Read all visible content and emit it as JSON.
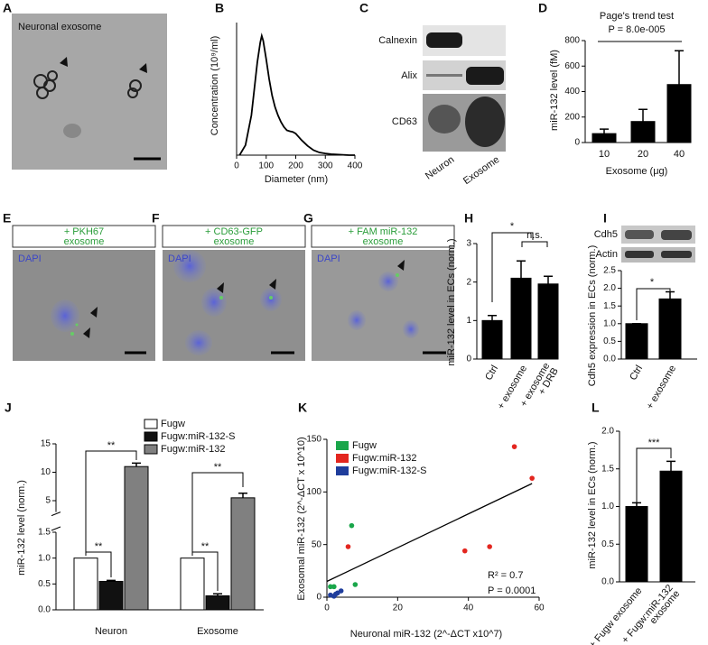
{
  "panels": [
    {
      "letter": "A",
      "label": "Neuronal exosome"
    },
    {
      "letter": "C",
      "bands": [
        "Calnexin",
        "Alix",
        "CD63"
      ],
      "lanes": [
        "Neuron",
        "Exosome"
      ]
    },
    {
      "letter": "E",
      "label": [
        "+ PKH67",
        "exosome"
      ],
      "stain": "DAPI"
    },
    {
      "letter": "F",
      "label": [
        "+ CD63-GFP",
        "exosome"
      ],
      "stain": "DAPI"
    },
    {
      "letter": "G",
      "label": [
        "+ FAM miR-132",
        "exosome"
      ],
      "stain": "DAPI"
    },
    {
      "letter": "I",
      "bands": [
        "Cdh5",
        "Actin"
      ]
    }
  ],
  "chart_data": [
    {
      "panel": "B",
      "type": "line",
      "xlabel": "Diameter (nm)",
      "ylabel": "Concentration (10⁹/ml)",
      "x": [
        10,
        30,
        50,
        60,
        70,
        80,
        85,
        90,
        100,
        110,
        120,
        130,
        140,
        150,
        160,
        170,
        180,
        190,
        200,
        210,
        220,
        240,
        260,
        280,
        300,
        320,
        340,
        360,
        380,
        400
      ],
      "values": [
        0,
        0.3,
        1.2,
        2.0,
        2.8,
        3.4,
        3.6,
        3.45,
        2.9,
        2.3,
        1.8,
        1.45,
        1.2,
        1.0,
        0.85,
        0.75,
        0.72,
        0.7,
        0.65,
        0.55,
        0.45,
        0.28,
        0.15,
        0.08,
        0.05,
        0.03,
        0.02,
        0.01,
        0,
        0
      ],
      "color": "#000000",
      "xlim": [
        0,
        400
      ],
      "xticks": [
        0,
        100,
        200,
        300,
        400
      ],
      "ylim": [
        0,
        4
      ]
    },
    {
      "panel": "D",
      "type": "bar",
      "title": "Page's trend test",
      "subtitle": "P = 8.0e-005",
      "xlabel": "Exosome (μg)",
      "ylabel": "miR-132 level (fM)",
      "categories": [
        "10",
        "20",
        "40"
      ],
      "values": [
        70,
        165,
        455
      ],
      "errors": [
        35,
        95,
        265
      ],
      "color": "#000000",
      "ylim": [
        0,
        800
      ],
      "yticks": [
        0,
        200,
        400,
        600,
        800
      ]
    },
    {
      "panel": "H",
      "type": "bar",
      "ylabel": "miR-132 level in ECs (norm.)",
      "categories": [
        [
          "Ctrl"
        ],
        [
          "+ exosome"
        ],
        [
          "+ exosome",
          "+ DRB"
        ]
      ],
      "values": [
        1.0,
        2.1,
        1.95
      ],
      "errors": [
        0.13,
        0.45,
        0.2
      ],
      "color": "#000000",
      "ylim": [
        0,
        3
      ],
      "yticks": [
        0,
        1,
        2,
        3
      ],
      "annotations": [
        "*",
        "n.s."
      ]
    },
    {
      "type": "bar",
      "ylabel": "Cdh5 expression in ECs (norm.)",
      "categories": [
        [
          "Ctrl"
        ],
        [
          "+ exosome"
        ]
      ],
      "values": [
        1.0,
        1.7
      ],
      "errors": [
        0,
        0.2
      ],
      "color": "#000000",
      "ylim": [
        0,
        2.5
      ],
      "yticks": [
        {
          "value": 0,
          "label": "0.0"
        },
        0.5,
        {
          "value": 1,
          "label": "1.0"
        },
        1.5,
        {
          "value": 2,
          "label": "2.0"
        },
        2.5
      ],
      "annotations": [
        "*"
      ]
    },
    {
      "panel": "J",
      "type": "broken-bar",
      "ylabel": "miR-132 level (norm.)",
      "categories": [
        "Neuron",
        "Exosome"
      ],
      "series": [
        {
          "name": "Fugw",
          "color": "#ffffff",
          "values": [
            1.0,
            1.0
          ]
        },
        {
          "name": "Fugw:miR-132-S",
          "color": "#111111",
          "values": [
            0.55,
            0.27
          ],
          "errors": [
            0.02,
            0.04
          ]
        },
        {
          "name": "Fugw:miR-132",
          "color": "#808080",
          "values": [
            11.0,
            5.5
          ],
          "errors": [
            0.6,
            0.8
          ]
        }
      ],
      "ylim": [
        0,
        15
      ],
      "ybreak": [
        1.5,
        3
      ],
      "yticks": [
        {
          "value": 0,
          "label": "0.0"
        },
        0.5,
        {
          "value": 1,
          "label": "1.0"
        },
        1.5,
        5,
        10,
        15
      ],
      "annotations": [
        "**",
        "**",
        "**",
        "**"
      ]
    },
    {
      "panel": "K",
      "type": "scatter",
      "xlabel": "Neuronal miR-132 (2^-ΔCT x10^7)",
      "ylabel": "Exosomal miR-132 (2^-ΔCT x 10^10)",
      "series": [
        {
          "name": "Fugw",
          "color": "#1aa64a",
          "x": [
            1,
            2,
            7,
            8
          ],
          "values": [
            10,
            10,
            68,
            12
          ]
        },
        {
          "name": "Fugw:miR-132",
          "color": "#e3261f",
          "x": [
            6,
            39,
            46,
            53,
            58
          ],
          "values": [
            48,
            44,
            48,
            143,
            113
          ]
        },
        {
          "name": "Fugw:miR-132-S",
          "color": "#1f3d9c",
          "x": [
            1,
            2,
            2.5,
            3,
            4
          ],
          "values": [
            2,
            1,
            3,
            4,
            6
          ]
        }
      ],
      "fit": {
        "x": [
          0,
          58
        ],
        "y": [
          15,
          108
        ]
      },
      "xlim": [
        0,
        60
      ],
      "xticks": [
        0,
        20,
        40,
        60
      ],
      "ylim": [
        0,
        150
      ],
      "yticks": [
        0,
        50,
        100,
        150
      ],
      "annotations": [
        "R² = 0.7",
        "P = 0.0001"
      ]
    },
    {
      "panel": "L",
      "type": "bar",
      "ylabel": "miR-132 level in ECs (norm.)",
      "categories": [
        [
          "+ Fugw exosome"
        ],
        [
          "+ Fugw:miR-132",
          "exosome"
        ]
      ],
      "values": [
        1.0,
        1.47
      ],
      "errors": [
        0.05,
        0.13
      ],
      "color": "#000000",
      "ylim": [
        0,
        2.0
      ],
      "yticks": [
        {
          "value": 0,
          "label": "0.0"
        },
        0.5,
        {
          "value": 1,
          "label": "1.0"
        },
        1.5,
        {
          "value": 2,
          "label": "2.0"
        }
      ],
      "annotations": [
        "***"
      ]
    }
  ]
}
